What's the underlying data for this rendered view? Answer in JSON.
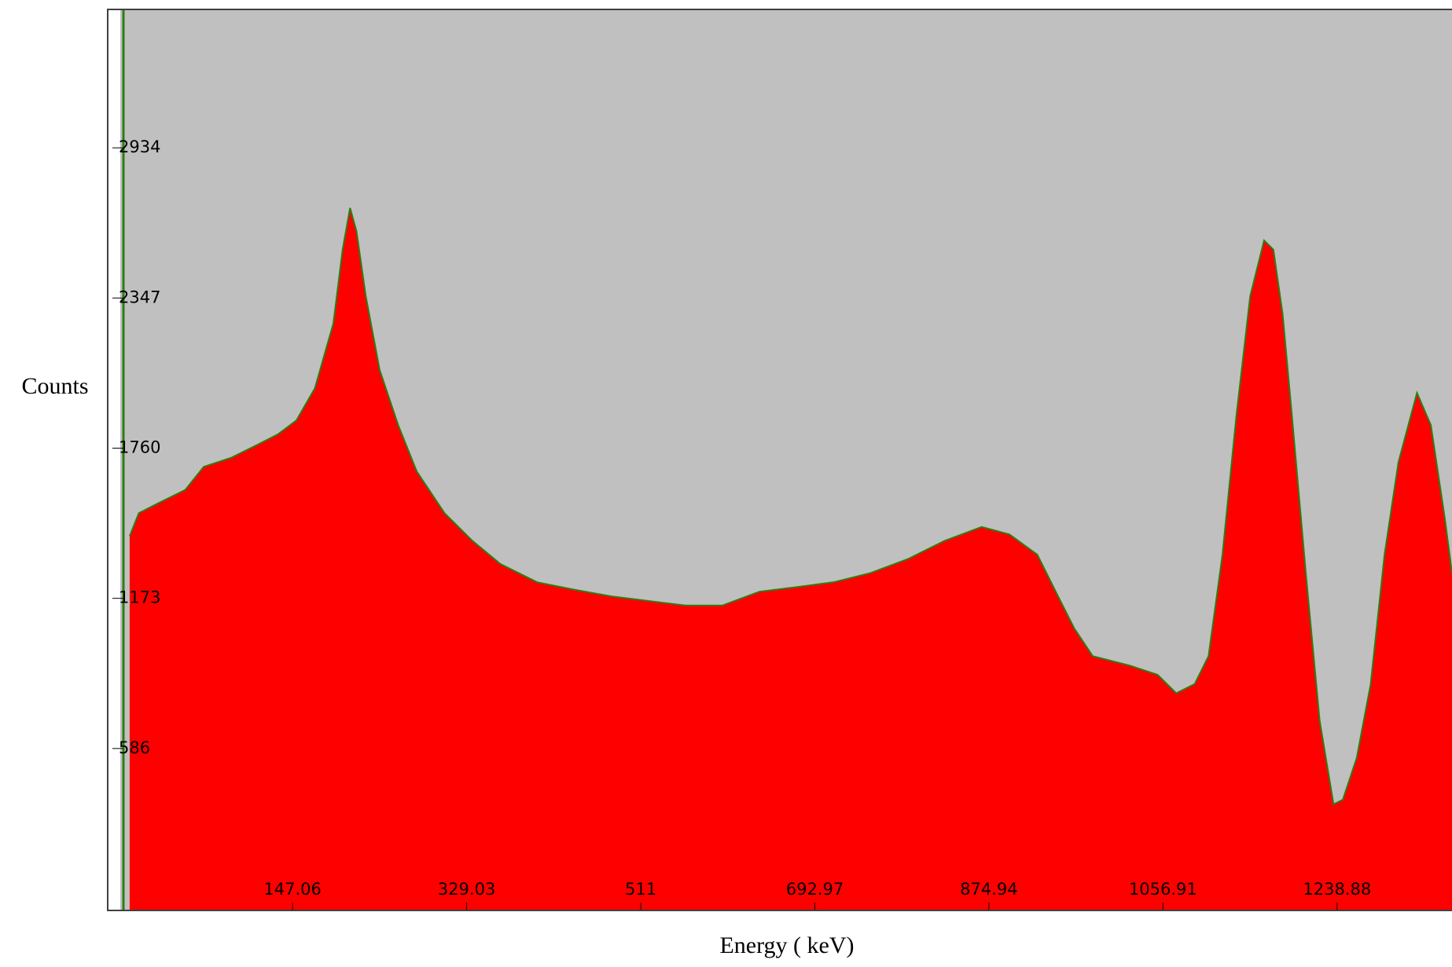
{
  "chart_data": {
    "type": "area",
    "x_label": "Energy ( keV)",
    "y_label": "Counts",
    "x": [
      -23.2,
      -13.6,
      5.8,
      34.9,
      54.2,
      83.3,
      112.3,
      131.7,
      151,
      170.4,
      189.7,
      199.4,
      207.2,
      213.9,
      223.6,
      238.1,
      257.5,
      276.9,
      305.9,
      335,
      364,
      402.7,
      441.4,
      480.2,
      518.9,
      557.6,
      596.3,
      635.1,
      673.8,
      712.5,
      751.2,
      789.9,
      828.7,
      867.4,
      896.4,
      925.5,
      944.8,
      964.2,
      983.5,
      1022.3,
      1051.3,
      1070.7,
      1090,
      1104.5,
      1119.1,
      1133.6,
      1148.1,
      1162.6,
      1172.3,
      1182,
      1191.7,
      1206.2,
      1220.7,
      1235.2,
      1244.9,
      1259.4,
      1274,
      1288.5,
      1303,
      1322.4,
      1336.9,
      1351.4,
      1359
    ],
    "series": [
      {
        "name": "Counts",
        "color": "#ff0000",
        "line_color": "#2e7d14",
        "values": [
          1416,
          1506,
          1543,
          1597,
          1687,
          1723,
          1777,
          1814,
          1868,
          1994,
          2247,
          2536,
          2699,
          2608,
          2355,
          2066,
          1850,
          1669,
          1506,
          1398,
          1308,
          1236,
          1207,
          1181,
          1163,
          1145,
          1145,
          1199,
          1217,
          1236,
          1272,
          1326,
          1398,
          1452,
          1423,
          1344,
          1199,
          1055,
          947,
          910,
          874,
          802,
          838,
          947,
          1344,
          1886,
          2355,
          2572,
          2536,
          2283,
          1886,
          1272,
          694,
          368,
          386,
          549,
          838,
          1344,
          1705,
          1976,
          1850,
          1488,
          1272
        ]
      }
    ],
    "xlim": [
      -33,
      1359
    ],
    "ylim": [
      -47,
      3475
    ],
    "xticks": [
      147.06,
      329.03,
      511,
      692.97,
      874.94,
      1056.91,
      1238.88
    ],
    "yticks": [
      586,
      1173,
      1760,
      2347,
      2934
    ],
    "background": "#c0c0c0"
  }
}
